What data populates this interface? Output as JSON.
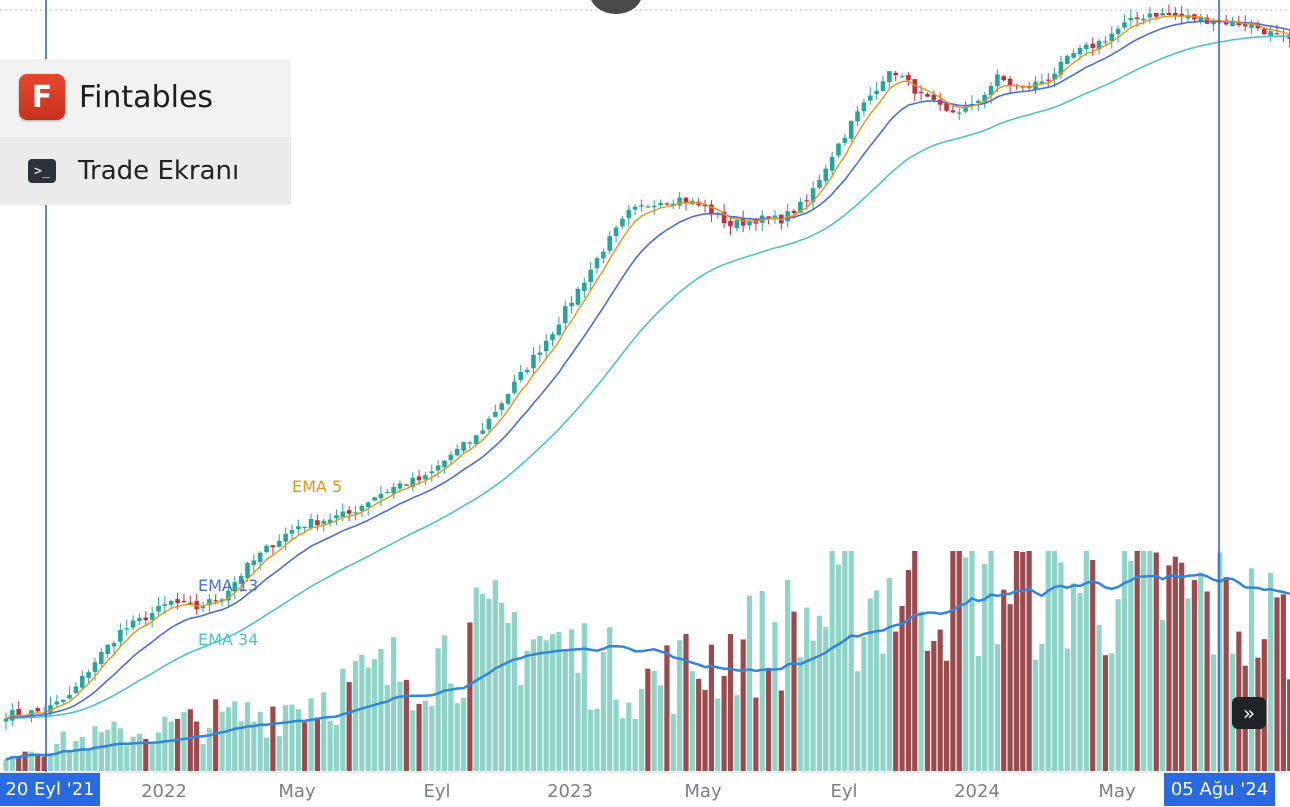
{
  "brand": {
    "logo_letter": "F",
    "name": "Fintables",
    "logo_icon": "fintables-logo-icon",
    "menu_icon": "terminal-icon",
    "menu_label": "Trade Ekranı"
  },
  "controls": {
    "scroll_label": "»",
    "scroll_icon": "double-chevron-right-icon"
  },
  "colors": {
    "up": "#26a69a",
    "down": "#c2303a",
    "vol_up": "#8fd4c6",
    "vol_down": "#9b4a4e",
    "ema5": "#e8941c",
    "ema13": "#4a6fd8",
    "ema34": "#4fc3c8",
    "vol_ma": "#2e86e0",
    "crosshair": "#2a5fc4",
    "accent": "#2a6ae0"
  },
  "chart_data": {
    "type": "candlestick",
    "interval": "weekly",
    "date_range": [
      "20 Eyl '21",
      "05 Ağu '24"
    ],
    "x_ticks": [
      "2022",
      "May",
      "Eyl",
      "2023",
      "May",
      "Eyl",
      "2024",
      "May"
    ],
    "indicators": [
      {
        "name": "EMA 5",
        "label": "EMA 5"
      },
      {
        "name": "EMA 13",
        "label": "EMA 13"
      },
      {
        "name": "EMA 34",
        "label": "EMA 34"
      }
    ],
    "volume_ma": true,
    "grid": false,
    "crosshair": {
      "start_label": "20 Eyl '21",
      "end_label": "05 Ağu '24"
    },
    "close_anchors": [
      [
        0,
        2
      ],
      [
        6,
        3
      ],
      [
        10,
        8
      ],
      [
        14,
        20
      ],
      [
        18,
        30
      ],
      [
        22,
        35
      ],
      [
        26,
        40
      ],
      [
        30,
        38
      ],
      [
        34,
        42
      ],
      [
        38,
        52
      ],
      [
        42,
        60
      ],
      [
        46,
        66
      ],
      [
        50,
        68
      ],
      [
        54,
        70
      ],
      [
        58,
        76
      ],
      [
        62,
        80
      ],
      [
        66,
        82
      ],
      [
        70,
        90
      ],
      [
        74,
        96
      ],
      [
        78,
        108
      ],
      [
        82,
        120
      ],
      [
        86,
        132
      ],
      [
        90,
        146
      ],
      [
        94,
        160
      ],
      [
        98,
        172
      ],
      [
        102,
        176
      ],
      [
        106,
        177
      ],
      [
        110,
        174
      ],
      [
        114,
        168
      ],
      [
        118,
        170
      ],
      [
        122,
        170
      ],
      [
        126,
        176
      ],
      [
        130,
        192
      ],
      [
        134,
        206
      ],
      [
        138,
        218
      ],
      [
        140,
        220
      ],
      [
        144,
        212
      ],
      [
        148,
        206
      ],
      [
        152,
        208
      ],
      [
        156,
        218
      ],
      [
        160,
        214
      ],
      [
        164,
        218
      ],
      [
        168,
        226
      ],
      [
        172,
        230
      ],
      [
        176,
        236
      ],
      [
        180,
        240
      ],
      [
        184,
        239
      ],
      [
        188,
        238
      ],
      [
        192,
        237
      ],
      [
        196,
        236
      ],
      [
        200,
        232
      ],
      [
        202,
        230
      ]
    ],
    "volume_profile": [
      [
        0,
        20
      ],
      [
        20,
        40
      ],
      [
        40,
        60
      ],
      [
        60,
        100
      ],
      [
        80,
        150
      ],
      [
        100,
        90
      ],
      [
        120,
        140
      ],
      [
        140,
        190
      ],
      [
        160,
        200
      ],
      [
        180,
        190
      ],
      [
        202,
        150
      ]
    ]
  }
}
